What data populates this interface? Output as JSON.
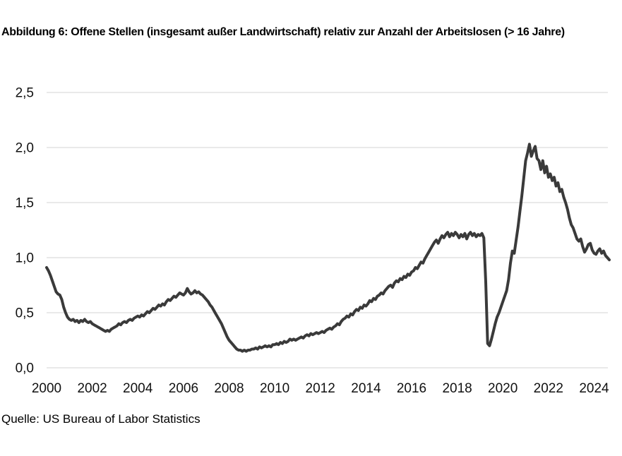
{
  "figure": {
    "title": "Abbildung 6: Offene Stellen (insgesamt außer Landwirtschaft) relativ zur Anzahl der Arbeitslosen (> 16 Jahre)",
    "source": "Quelle: US Bureau of Labor Statistics"
  },
  "chart_data": {
    "type": "line",
    "title": "Abbildung 6: Offene Stellen (insgesamt außer Landwirtschaft) relativ zur Anzahl der Arbeitslosen (> 16 Jahre)",
    "series_name": "Offene Stellen relativ zur Anzahl der Arbeitslosen",
    "frequency": "monthly",
    "x_start": "2000-12",
    "x_end": "2025-08",
    "xlabel": "",
    "ylabel": "",
    "ylim": [
      0,
      2.5
    ],
    "y_tick_values": [
      0,
      0.5,
      1.0,
      1.5,
      2.0,
      2.5
    ],
    "y_tick_labels": [
      "0,0",
      "0,5",
      "1,0",
      "1,5",
      "2,0",
      "2,5"
    ],
    "x_tick_indices": [
      0,
      24,
      48,
      72,
      96,
      120,
      144,
      168,
      192,
      216,
      240,
      264,
      288
    ],
    "x_tick_labels": [
      "2000",
      "2002",
      "2004",
      "2006",
      "2008",
      "2010",
      "2012",
      "2014",
      "2016",
      "2018",
      "2020",
      "2022",
      "2024"
    ],
    "grid": "horizontal",
    "legend": "none",
    "line_color": "#3a3a3a",
    "grid_color": "#e9e9e9",
    "values": [
      0.91,
      0.88,
      0.84,
      0.79,
      0.74,
      0.69,
      0.67,
      0.66,
      0.62,
      0.55,
      0.5,
      0.46,
      0.44,
      0.43,
      0.44,
      0.42,
      0.43,
      0.41,
      0.43,
      0.42,
      0.44,
      0.42,
      0.41,
      0.42,
      0.4,
      0.39,
      0.38,
      0.37,
      0.36,
      0.35,
      0.34,
      0.33,
      0.34,
      0.33,
      0.35,
      0.36,
      0.37,
      0.38,
      0.4,
      0.39,
      0.41,
      0.42,
      0.41,
      0.43,
      0.44,
      0.43,
      0.45,
      0.46,
      0.47,
      0.46,
      0.48,
      0.47,
      0.49,
      0.51,
      0.5,
      0.52,
      0.54,
      0.53,
      0.55,
      0.57,
      0.56,
      0.58,
      0.57,
      0.6,
      0.62,
      0.61,
      0.63,
      0.65,
      0.64,
      0.66,
      0.68,
      0.67,
      0.66,
      0.68,
      0.72,
      0.69,
      0.67,
      0.68,
      0.7,
      0.68,
      0.69,
      0.67,
      0.66,
      0.64,
      0.62,
      0.6,
      0.57,
      0.55,
      0.52,
      0.49,
      0.46,
      0.43,
      0.4,
      0.36,
      0.32,
      0.28,
      0.25,
      0.23,
      0.21,
      0.19,
      0.17,
      0.16,
      0.16,
      0.15,
      0.16,
      0.15,
      0.16,
      0.16,
      0.17,
      0.17,
      0.18,
      0.17,
      0.19,
      0.18,
      0.19,
      0.2,
      0.19,
      0.2,
      0.19,
      0.21,
      0.21,
      0.22,
      0.21,
      0.23,
      0.22,
      0.24,
      0.23,
      0.24,
      0.26,
      0.25,
      0.26,
      0.25,
      0.26,
      0.27,
      0.28,
      0.27,
      0.29,
      0.3,
      0.29,
      0.31,
      0.3,
      0.31,
      0.32,
      0.31,
      0.32,
      0.33,
      0.32,
      0.34,
      0.35,
      0.36,
      0.35,
      0.37,
      0.38,
      0.4,
      0.39,
      0.42,
      0.44,
      0.45,
      0.47,
      0.46,
      0.49,
      0.48,
      0.51,
      0.53,
      0.52,
      0.55,
      0.54,
      0.57,
      0.56,
      0.58,
      0.61,
      0.6,
      0.63,
      0.62,
      0.65,
      0.66,
      0.68,
      0.67,
      0.7,
      0.72,
      0.74,
      0.75,
      0.73,
      0.77,
      0.79,
      0.78,
      0.81,
      0.8,
      0.83,
      0.82,
      0.85,
      0.84,
      0.87,
      0.88,
      0.91,
      0.9,
      0.93,
      0.96,
      0.95,
      0.99,
      1.02,
      1.05,
      1.08,
      1.11,
      1.14,
      1.16,
      1.13,
      1.17,
      1.2,
      1.18,
      1.21,
      1.23,
      1.19,
      1.22,
      1.2,
      1.23,
      1.21,
      1.18,
      1.21,
      1.19,
      1.22,
      1.17,
      1.21,
      1.23,
      1.2,
      1.22,
      1.19,
      1.21,
      1.2,
      1.22,
      1.18,
      0.78,
      0.22,
      0.2,
      0.26,
      0.33,
      0.4,
      0.46,
      0.5,
      0.55,
      0.6,
      0.65,
      0.7,
      0.8,
      0.95,
      1.06,
      1.04,
      1.16,
      1.28,
      1.42,
      1.56,
      1.72,
      1.88,
      1.95,
      2.03,
      1.92,
      1.97,
      2.01,
      1.9,
      1.88,
      1.8,
      1.88,
      1.77,
      1.83,
      1.73,
      1.76,
      1.7,
      1.73,
      1.65,
      1.68,
      1.6,
      1.62,
      1.55,
      1.5,
      1.44,
      1.36,
      1.3,
      1.27,
      1.22,
      1.17,
      1.15,
      1.17,
      1.1,
      1.05,
      1.08,
      1.12,
      1.13,
      1.07,
      1.04,
      1.03,
      1.06,
      1.08,
      1.04,
      1.06,
      1.02,
      1.0,
      0.98
    ]
  }
}
